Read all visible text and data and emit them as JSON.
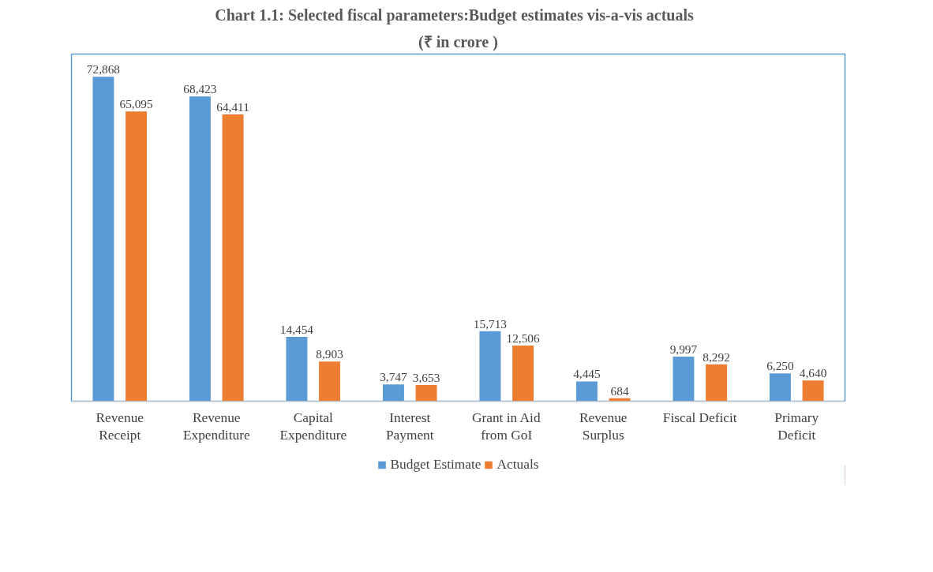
{
  "chart_data": {
    "type": "bar",
    "title": "Chart 1.1: Selected fiscal parameters:Budget  estimates vis-a-vis  actuals",
    "subtitle": "(₹ in crore )",
    "categories": [
      "Revenue\nReceipt",
      "Revenue\nExpenditure",
      "Capital\nExpenditure",
      "Interest\nPayment",
      "Grant in Aid\nfrom GoI",
      "Revenue\nSurplus",
      "Fiscal Deficit",
      "Primary\nDeficit"
    ],
    "series": [
      {
        "name": "Budget Estimate",
        "color": "#5b9bd5",
        "values": [
          72868,
          68423,
          14454,
          3747,
          15713,
          4445,
          9997,
          6250
        ],
        "value_labels": [
          "72,868",
          "68,423",
          "14,454",
          "3,747",
          "15,713",
          "4,445",
          "9,997",
          "6,250"
        ]
      },
      {
        "name": "Actuals",
        "color": "#ed7d31",
        "values": [
          65095,
          64411,
          8903,
          3653,
          12506,
          684,
          8292,
          4640
        ],
        "value_labels": [
          "65,095",
          "64,411",
          "8,903",
          "3,653",
          "12,506",
          "684",
          "8,292",
          "4,640"
        ]
      }
    ],
    "data_labels": true,
    "legend": "bottom",
    "grid": false
  }
}
